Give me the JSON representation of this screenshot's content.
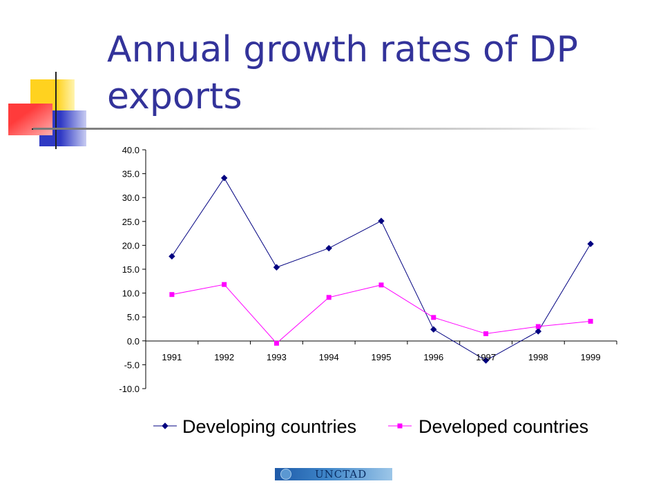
{
  "slide": {
    "title": "Annual growth rates of DP exports",
    "colors": {
      "title": "#33339a",
      "deco_yellow": "#ffd21f",
      "deco_blue": "#3a44cc",
      "deco_red": "#ff3b3b"
    }
  },
  "logo": {
    "text": "UNCTAD"
  },
  "chart_data": {
    "type": "line",
    "title": "",
    "xlabel": "",
    "ylabel": "",
    "categories": [
      "1991",
      "1992",
      "1993",
      "1994",
      "1995",
      "1996",
      "1997",
      "1998",
      "1999"
    ],
    "ylim": [
      -10,
      40
    ],
    "yticks": [
      40,
      35,
      30,
      25,
      20,
      15,
      10,
      5,
      0,
      -5,
      -10
    ],
    "ytick_labels": [
      "40.0",
      "35.0",
      "30.0",
      "25.0",
      "20.0",
      "15.0",
      "10.0",
      "5.0",
      "0.0",
      "-5.0",
      "-10.0"
    ],
    "grid": false,
    "legend_position": "bottom",
    "series": [
      {
        "name": "Developing countries",
        "color": "#000080",
        "marker": "diamond",
        "values": [
          17.7,
          34.1,
          15.4,
          19.4,
          25.1,
          2.4,
          -4.1,
          2.0,
          20.3
        ]
      },
      {
        "name": "Developed countries",
        "color": "#ff00ff",
        "marker": "square",
        "values": [
          9.7,
          11.8,
          -0.5,
          9.1,
          11.7,
          4.9,
          1.5,
          3.0,
          4.1
        ]
      }
    ]
  }
}
